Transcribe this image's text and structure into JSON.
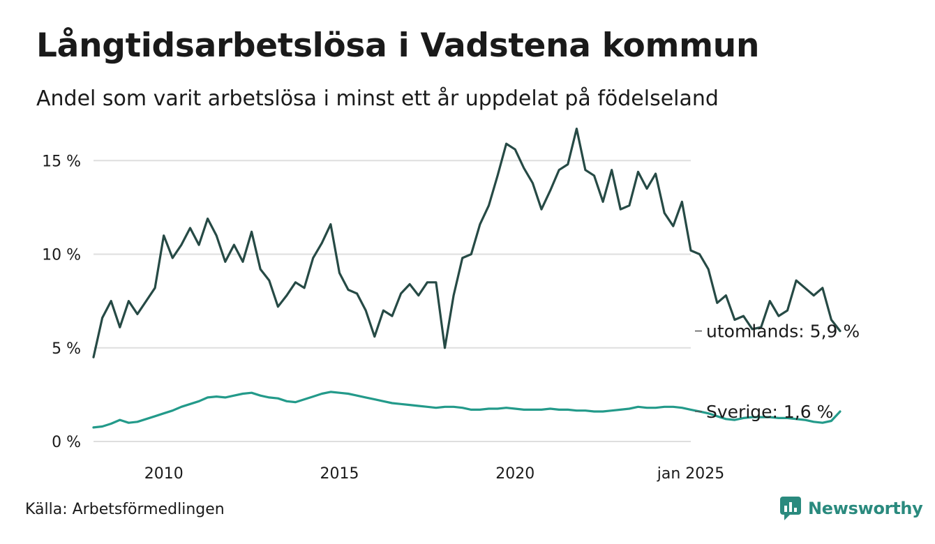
{
  "header": {
    "title": "Långtidsarbetslösa i Vadstena kommun",
    "subtitle": "Andel som varit arbetslösa i minst ett år uppdelat på födelseland"
  },
  "footer": {
    "source": "Källa: Arbetsförmedlingen",
    "brand": "Newsworthy",
    "brand_icon": "newsworthy-logo-icon"
  },
  "chart_data": {
    "type": "line",
    "title": "Långtidsarbetslösa i Vadstena kommun",
    "xlabel": "",
    "ylabel": "",
    "x_start": 2008.0,
    "x_step": 0.25,
    "xlim": [
      2008.0,
      2025.0
    ],
    "ylim": [
      0,
      16.5
    ],
    "y_ticks": [
      {
        "value": 0,
        "label": "0 %"
      },
      {
        "value": 5,
        "label": "5 %"
      },
      {
        "value": 10,
        "label": "10 %"
      },
      {
        "value": 15,
        "label": "15 %"
      }
    ],
    "x_ticks": [
      {
        "value": 2010,
        "label": "2010"
      },
      {
        "value": 2015,
        "label": "2015"
      },
      {
        "value": 2020,
        "label": "2020"
      },
      {
        "value": 2025,
        "label": "jan 2025"
      }
    ],
    "grid": true,
    "series": [
      {
        "name": "utomlands",
        "end_label": "utomlands: 5,9 %",
        "color": "#264a45",
        "values": [
          4.5,
          6.6,
          7.5,
          6.1,
          7.5,
          6.8,
          7.5,
          8.2,
          11.0,
          9.8,
          10.5,
          11.4,
          10.5,
          11.9,
          11.0,
          9.6,
          10.5,
          9.6,
          11.2,
          9.2,
          8.6,
          7.2,
          7.8,
          8.5,
          8.2,
          9.8,
          10.6,
          11.6,
          9.0,
          8.1,
          7.9,
          7.0,
          5.6,
          7.0,
          6.7,
          7.9,
          8.4,
          7.8,
          8.5,
          8.5,
          5.0,
          7.8,
          9.8,
          10.0,
          11.6,
          12.6,
          14.2,
          15.9,
          15.6,
          14.6,
          13.8,
          12.4,
          13.4,
          14.5,
          14.8,
          16.7,
          14.5,
          14.2,
          12.8,
          14.5,
          12.4,
          12.6,
          14.4,
          13.5,
          14.3,
          12.2,
          11.5,
          12.8,
          10.2,
          10.0,
          9.2,
          7.4,
          7.8,
          6.5,
          6.7,
          6.0,
          6.1,
          7.5,
          6.7,
          7.0,
          8.6,
          8.2,
          7.8,
          8.2,
          6.5,
          5.9
        ]
      },
      {
        "name": "Sverige",
        "end_label": "Sverige: 1,6 %",
        "color": "#239a8a",
        "values": [
          0.75,
          0.8,
          0.95,
          1.15,
          1.0,
          1.05,
          1.2,
          1.35,
          1.5,
          1.65,
          1.85,
          2.0,
          2.15,
          2.35,
          2.4,
          2.35,
          2.45,
          2.55,
          2.6,
          2.45,
          2.35,
          2.3,
          2.15,
          2.1,
          2.25,
          2.4,
          2.55,
          2.65,
          2.6,
          2.55,
          2.45,
          2.35,
          2.25,
          2.15,
          2.05,
          2.0,
          1.95,
          1.9,
          1.85,
          1.8,
          1.85,
          1.85,
          1.8,
          1.7,
          1.7,
          1.75,
          1.75,
          1.8,
          1.75,
          1.7,
          1.7,
          1.7,
          1.75,
          1.7,
          1.7,
          1.65,
          1.65,
          1.6,
          1.6,
          1.65,
          1.7,
          1.75,
          1.85,
          1.8,
          1.8,
          1.85,
          1.85,
          1.8,
          1.7,
          1.6,
          1.5,
          1.35,
          1.2,
          1.15,
          1.25,
          1.3,
          1.3,
          1.3,
          1.25,
          1.25,
          1.2,
          1.15,
          1.05,
          1.0,
          1.1,
          1.6
        ]
      }
    ]
  }
}
